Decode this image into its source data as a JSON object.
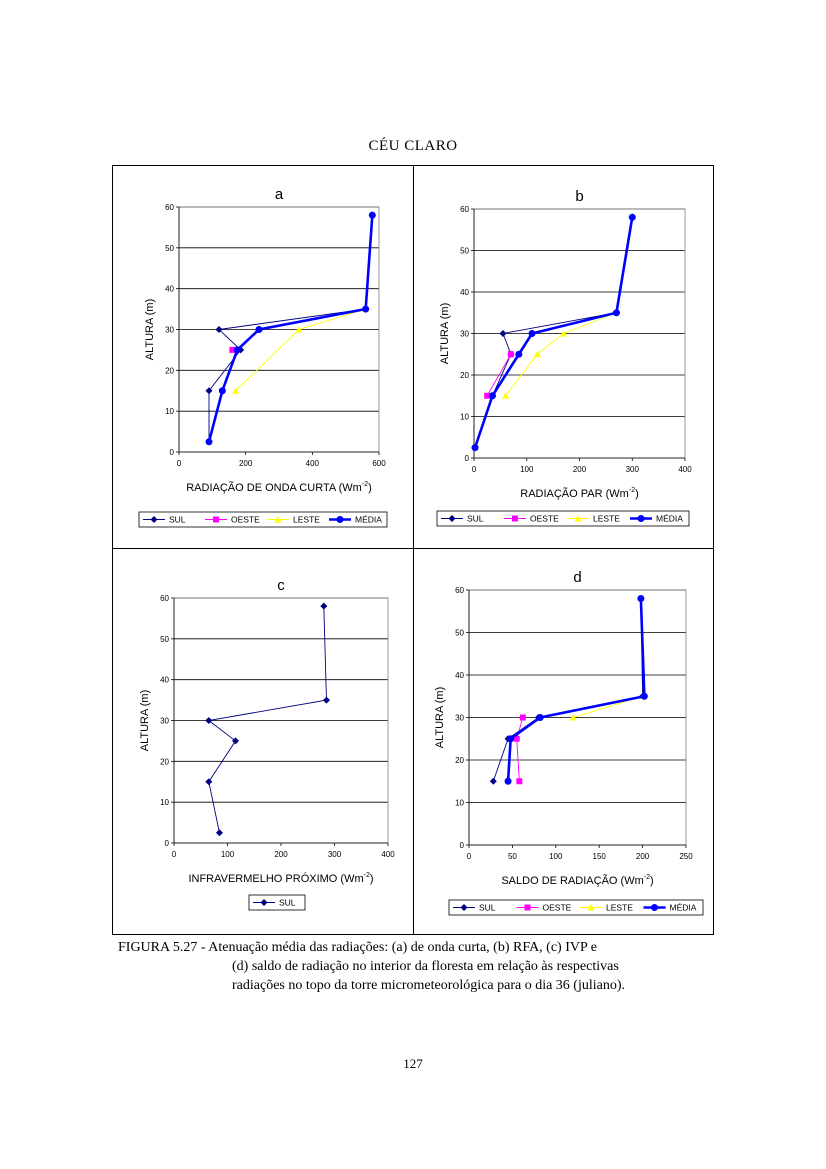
{
  "page_title": "CÉU CLARO",
  "caption": {
    "label": "FIGURA 5.27 -",
    "line1": "Atenuação média das radiações: (a) de onda curta, (b) RFA, (c) IVP e",
    "line2": "(d) saldo de radiação no interior da floresta em relação às respectivas",
    "line3": "radiações no topo da torre micrometeorológica para o dia 36 (juliano)."
  },
  "page_number": "127",
  "colors": {
    "SUL": "#000080",
    "OESTE": "#ff00ff",
    "LESTE": "#ffff00",
    "MEDIA": "#0000ff"
  },
  "chart_data": [
    {
      "panel": "a",
      "type": "line",
      "title": "a",
      "xlabel": "RADIAÇÃO DE ONDA CURTA (Wm",
      "xlabel_sup": "-2",
      "ylabel": "ALTURA (m)",
      "xlim": [
        0,
        600
      ],
      "ylim": [
        0,
        60
      ],
      "xticks": [
        0,
        200,
        400,
        600
      ],
      "yticks": [
        0,
        10,
        20,
        30,
        40,
        50,
        60
      ],
      "series": [
        {
          "name": "SUL",
          "marker": "diamond",
          "color": "#000080",
          "points": [
            [
              90,
              2.5
            ],
            [
              90,
              15
            ],
            [
              185,
              25
            ],
            [
              120,
              30
            ],
            [
              560,
              35
            ],
            [
              580,
              58
            ]
          ]
        },
        {
          "name": "OESTE",
          "marker": "square",
          "color": "#ff00ff",
          "points": [
            [
              160,
              25
            ]
          ]
        },
        {
          "name": "LESTE",
          "marker": "triangle",
          "color": "#ffff00",
          "points": [
            [
              170,
              15
            ],
            [
              360,
              30
            ],
            [
              560,
              35
            ]
          ]
        },
        {
          "name": "MÉDIA",
          "marker": "circle",
          "color": "#0000ff",
          "bold": true,
          "points": [
            [
              90,
              2.5
            ],
            [
              130,
              15
            ],
            [
              175,
              25
            ],
            [
              240,
              30
            ],
            [
              560,
              35
            ],
            [
              580,
              58
            ]
          ]
        }
      ]
    },
    {
      "panel": "b",
      "type": "line",
      "title": "b",
      "xlabel": "RADIAÇÃO PAR (Wm",
      "xlabel_sup": "-2",
      "ylabel": "ALTURA (m)",
      "xlim": [
        0,
        400
      ],
      "ylim": [
        0,
        60
      ],
      "xticks": [
        0,
        100,
        200,
        300,
        400
      ],
      "yticks": [
        0,
        10,
        20,
        30,
        40,
        50,
        60
      ],
      "series": [
        {
          "name": "SUL",
          "marker": "diamond",
          "color": "#000080",
          "points": [
            [
              2,
              2.5
            ],
            [
              35,
              15
            ],
            [
              70,
              25
            ],
            [
              55,
              30
            ],
            [
              270,
              35
            ],
            [
              300,
              58
            ]
          ]
        },
        {
          "name": "OESTE",
          "marker": "square",
          "color": "#ff00ff",
          "points": [
            [
              25,
              15
            ],
            [
              70,
              25
            ]
          ]
        },
        {
          "name": "LESTE",
          "marker": "triangle",
          "color": "#ffff00",
          "points": [
            [
              60,
              15
            ],
            [
              120,
              25
            ],
            [
              170,
              30
            ],
            [
              270,
              35
            ]
          ]
        },
        {
          "name": "MÉDIA",
          "marker": "circle",
          "color": "#0000ff",
          "bold": true,
          "points": [
            [
              2,
              2.5
            ],
            [
              35,
              15
            ],
            [
              85,
              25
            ],
            [
              110,
              30
            ],
            [
              270,
              35
            ],
            [
              300,
              58
            ]
          ]
        }
      ]
    },
    {
      "panel": "c",
      "type": "line",
      "title": "c",
      "xlabel": "INFRAVERMELHO PRÓXIMO (Wm",
      "xlabel_sup": "-2",
      "ylabel": "ALTURA (m)",
      "xlim": [
        0,
        400
      ],
      "ylim": [
        0,
        60
      ],
      "xticks": [
        0,
        100,
        200,
        300,
        400
      ],
      "yticks": [
        0,
        10,
        20,
        30,
        40,
        50,
        60
      ],
      "series": [
        {
          "name": "SUL",
          "marker": "diamond",
          "color": "#000080",
          "points": [
            [
              85,
              2.5
            ],
            [
              65,
              15
            ],
            [
              115,
              25
            ],
            [
              65,
              30
            ],
            [
              285,
              35
            ],
            [
              280,
              58
            ]
          ]
        }
      ]
    },
    {
      "panel": "d",
      "type": "line",
      "title": "d",
      "xlabel": "SALDO DE RADIAÇÃO (Wm",
      "xlabel_sup": "-2",
      "ylabel": "ALTURA (m)",
      "xlim": [
        0,
        250
      ],
      "ylim": [
        0,
        60
      ],
      "xticks": [
        0,
        50,
        100,
        150,
        200,
        250
      ],
      "yticks": [
        0,
        10,
        20,
        30,
        40,
        50,
        60
      ],
      "series": [
        {
          "name": "SUL",
          "marker": "diamond",
          "color": "#000080",
          "points": [
            [
              28,
              15
            ],
            [
              45,
              25
            ],
            [
              80,
              30
            ],
            [
              200,
              35
            ],
            [
              198,
              58
            ]
          ]
        },
        {
          "name": "OESTE",
          "marker": "square",
          "color": "#ff00ff",
          "points": [
            [
              58,
              15
            ],
            [
              55,
              25
            ],
            [
              62,
              30
            ]
          ]
        },
        {
          "name": "LESTE",
          "marker": "triangle",
          "color": "#ffff00",
          "points": [
            [
              120,
              30
            ],
            [
              200,
              35
            ]
          ]
        },
        {
          "name": "MÉDIA",
          "marker": "circle",
          "color": "#0000ff",
          "bold": true,
          "points": [
            [
              45,
              15
            ],
            [
              48,
              25
            ],
            [
              82,
              30
            ],
            [
              202,
              35
            ],
            [
              198,
              58
            ]
          ]
        }
      ]
    }
  ]
}
